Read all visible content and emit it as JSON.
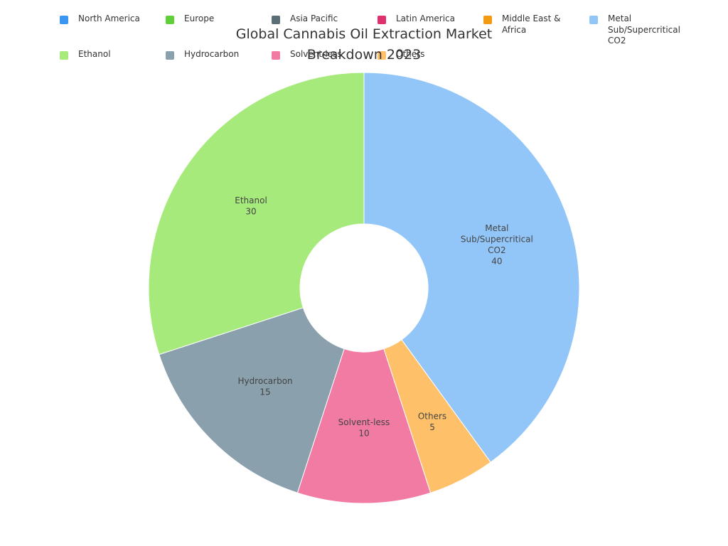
{
  "chart_data": {
    "type": "pie",
    "variant": "donut",
    "title": "Global Cannabis Oil Extraction Market Breakdown 2023",
    "legend_position": "top",
    "legend": [
      {
        "label": "North America",
        "color": "#3a96f0"
      },
      {
        "label": "Europe",
        "color": "#5fcf3a"
      },
      {
        "label": "Asia Pacific",
        "color": "#5a6e78"
      },
      {
        "label": "Latin America",
        "color": "#e0306e"
      },
      {
        "label": "Middle East & Africa",
        "color": "#f29a10"
      },
      {
        "label": "Metal Sub/Supercritical CO2",
        "color": "#93c6f8"
      },
      {
        "label": "Ethanol",
        "color": "#a6ea7c"
      },
      {
        "label": "Hydrocarbon",
        "color": "#8aa0ac"
      },
      {
        "label": "Solvent-less",
        "color": "#f17ba3"
      },
      {
        "label": "Others",
        "color": "#ffc06a"
      }
    ],
    "slices": [
      {
        "label": "Metal Sub/Supercritical CO2",
        "value": 40,
        "color": "#93c6f8"
      },
      {
        "label": "Others",
        "value": 5,
        "color": "#ffc06a"
      },
      {
        "label": "Solvent-less",
        "value": 10,
        "color": "#f17ba3"
      },
      {
        "label": "Hydrocarbon",
        "value": 15,
        "color": "#8aa0ac"
      },
      {
        "label": "Ethanol",
        "value": 30,
        "color": "#a6ea7c"
      }
    ]
  }
}
